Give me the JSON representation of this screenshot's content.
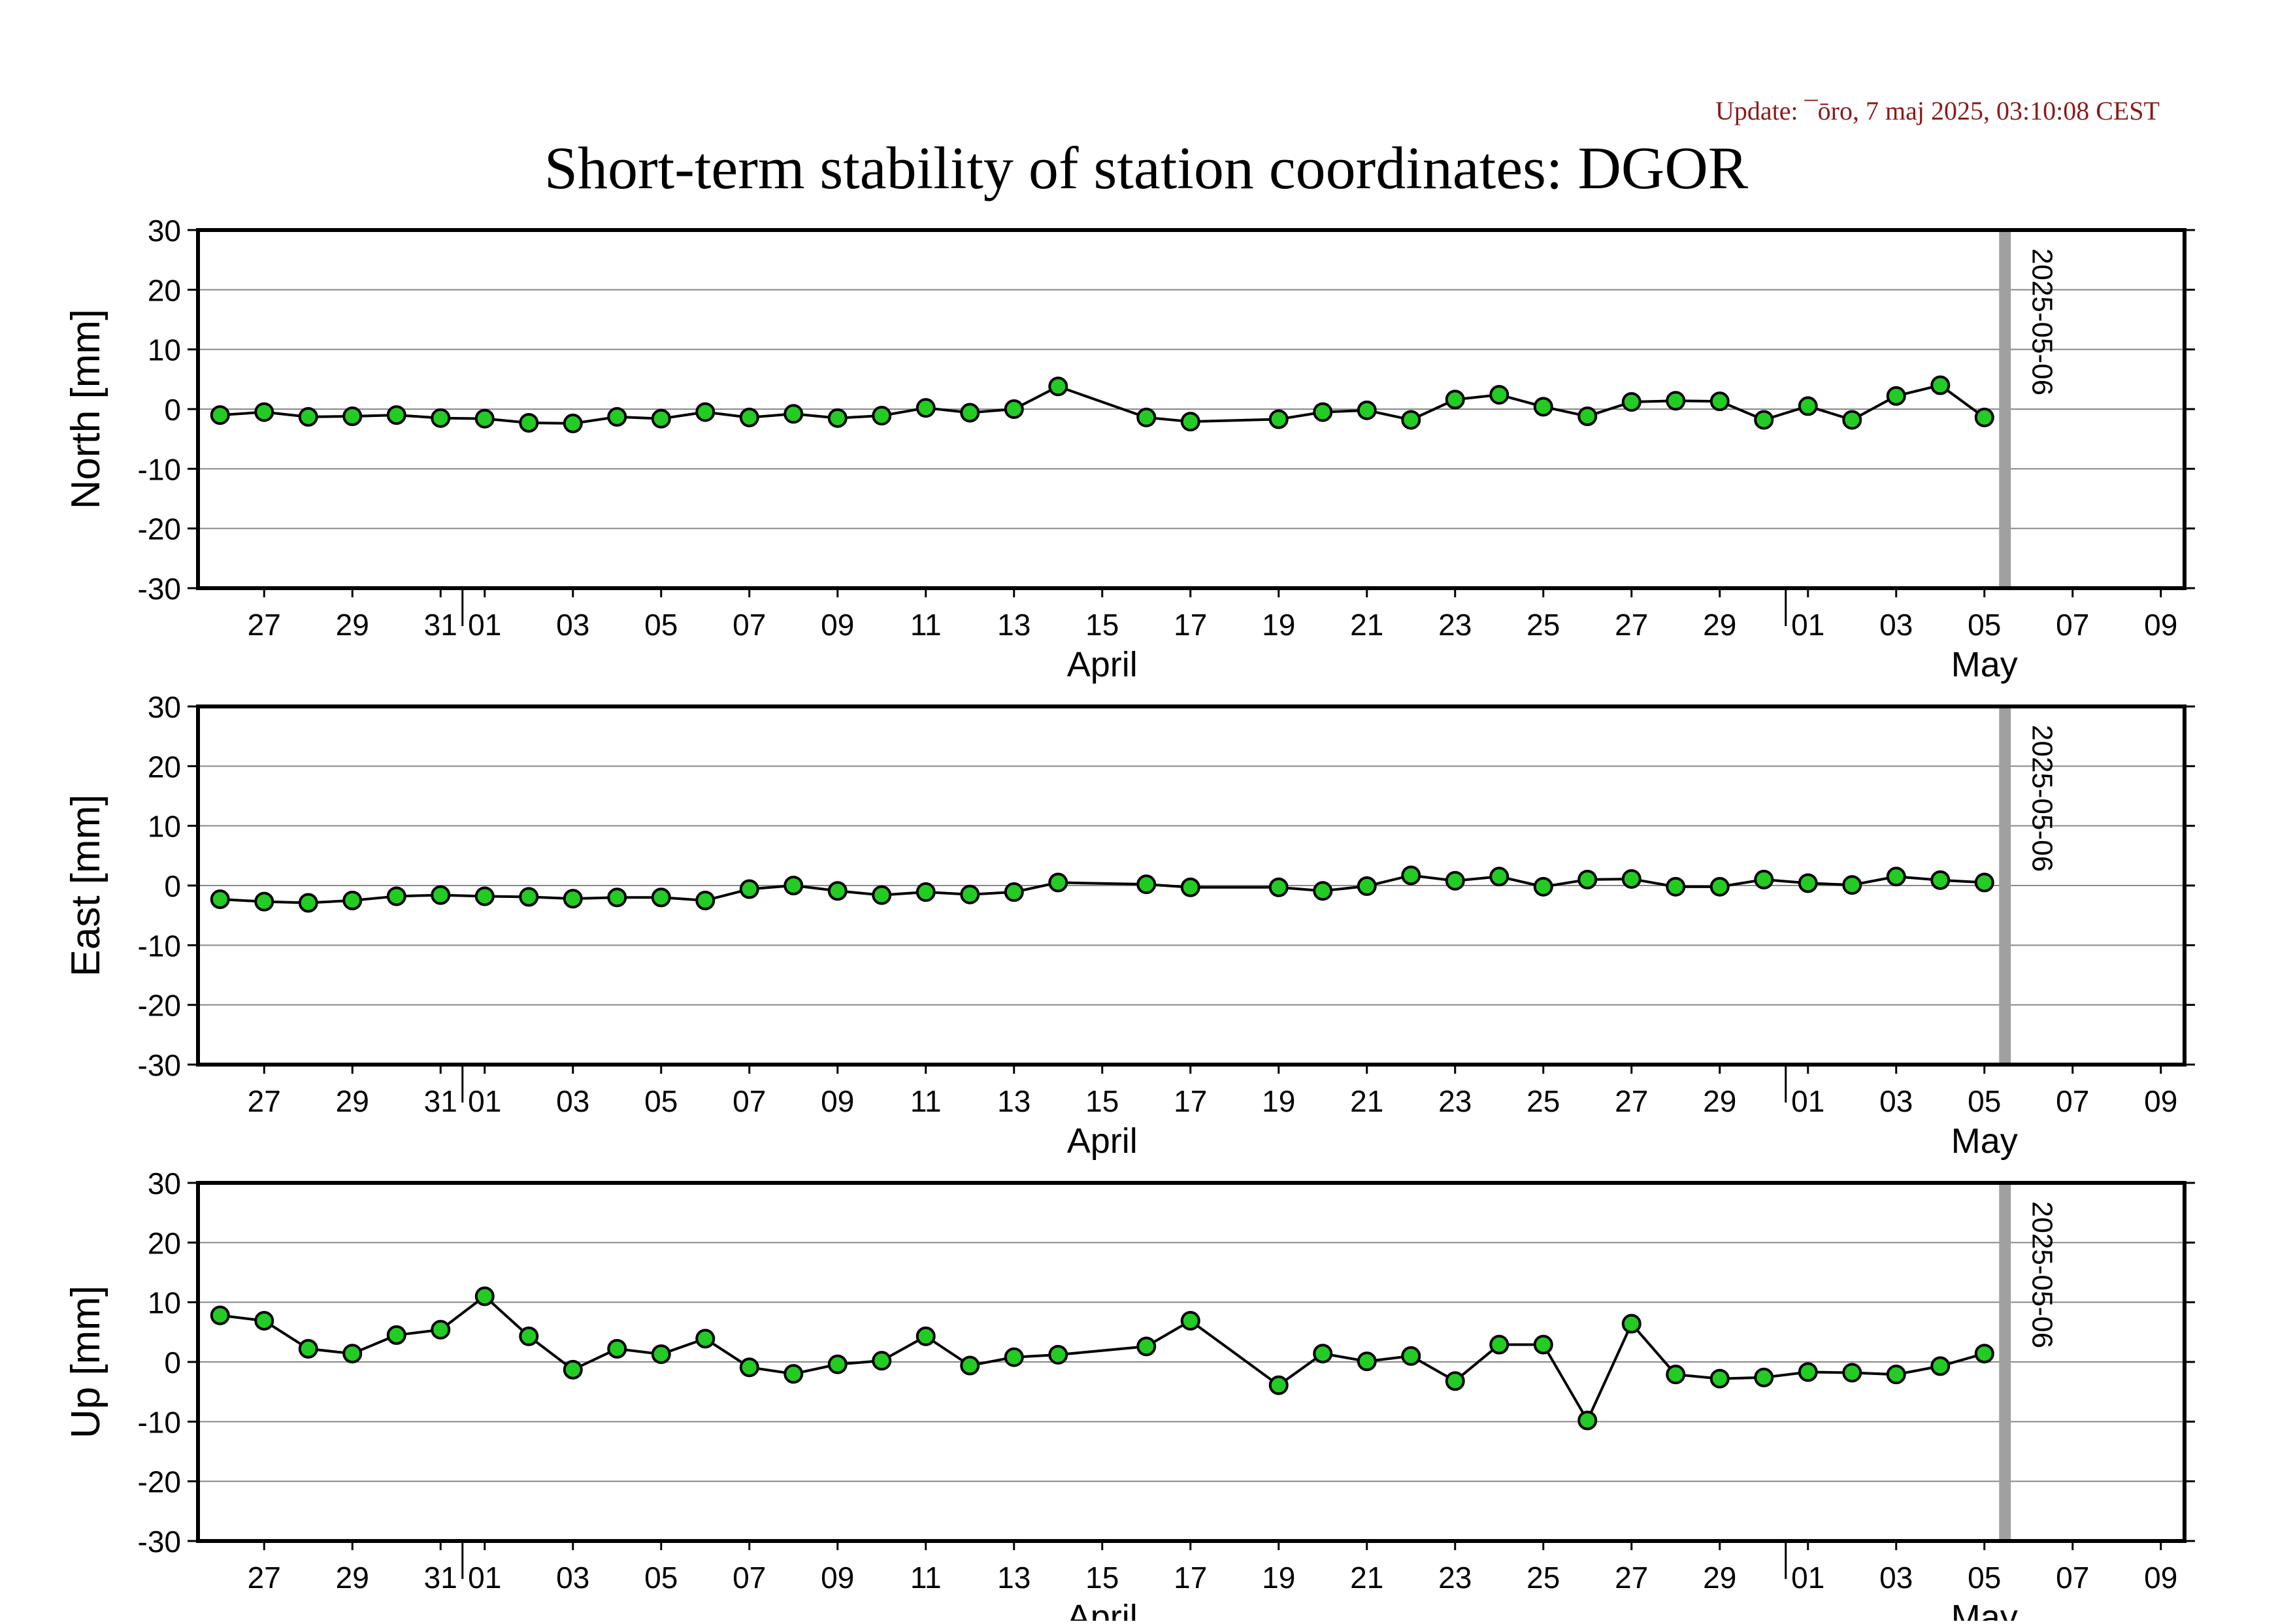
{
  "update_text": "Update: ¯ōro, 7 maj 2025, 03:10:08 CEST",
  "title": "Short-term stability of station coordinates: DGOR",
  "colors": {
    "marker_fill": "#22cc22",
    "marker_stroke": "#000000",
    "line": "#000000",
    "grid": "#888888",
    "date_marker": "#a0a0a0",
    "update_text": "#8b1a1a"
  },
  "x_axis": {
    "day_labels": [
      "27",
      "29",
      "31",
      "01",
      "03",
      "05",
      "07",
      "09",
      "11",
      "13",
      "15",
      "17",
      "19",
      "21",
      "23",
      "25",
      "27",
      "29",
      "01",
      "03",
      "05",
      "07",
      "09"
    ],
    "month_labels": [
      "April",
      "May"
    ]
  },
  "chart_data": [
    {
      "type": "line",
      "ylabel": "North [mm]",
      "ylim": [
        -30,
        30
      ],
      "yticks": [
        30,
        20,
        10,
        0,
        -10,
        -20,
        -30
      ],
      "grid": true,
      "marker_label": "2025-05-06",
      "marker_date": "2025-05-06",
      "points": [
        {
          "x": "2025-03-26",
          "y": -1.0
        },
        {
          "x": "2025-03-27",
          "y": -0.5
        },
        {
          "x": "2025-03-28",
          "y": -1.3
        },
        {
          "x": "2025-03-29",
          "y": -1.2
        },
        {
          "x": "2025-03-30",
          "y": -1.0
        },
        {
          "x": "2025-03-31",
          "y": -1.5
        },
        {
          "x": "2025-04-01",
          "y": -1.6
        },
        {
          "x": "2025-04-02",
          "y": -2.3
        },
        {
          "x": "2025-04-03",
          "y": -2.4
        },
        {
          "x": "2025-04-04",
          "y": -1.3
        },
        {
          "x": "2025-04-05",
          "y": -1.6
        },
        {
          "x": "2025-04-06",
          "y": -0.5
        },
        {
          "x": "2025-04-07",
          "y": -1.4
        },
        {
          "x": "2025-04-08",
          "y": -0.8
        },
        {
          "x": "2025-04-09",
          "y": -1.5
        },
        {
          "x": "2025-04-10",
          "y": -1.1
        },
        {
          "x": "2025-04-11",
          "y": 0.2
        },
        {
          "x": "2025-04-12",
          "y": -0.6
        },
        {
          "x": "2025-04-13",
          "y": 0.0
        },
        {
          "x": "2025-04-14",
          "y": 3.8
        },
        {
          "x": "2025-04-16",
          "y": -1.4
        },
        {
          "x": "2025-04-17",
          "y": -2.1
        },
        {
          "x": "2025-04-19",
          "y": -1.7
        },
        {
          "x": "2025-04-20",
          "y": -0.5
        },
        {
          "x": "2025-04-21",
          "y": -0.2
        },
        {
          "x": "2025-04-22",
          "y": -1.8
        },
        {
          "x": "2025-04-23",
          "y": 1.6
        },
        {
          "x": "2025-04-24",
          "y": 2.4
        },
        {
          "x": "2025-04-25",
          "y": 0.4
        },
        {
          "x": "2025-04-26",
          "y": -1.2
        },
        {
          "x": "2025-04-27",
          "y": 1.2
        },
        {
          "x": "2025-04-28",
          "y": 1.4
        },
        {
          "x": "2025-04-29",
          "y": 1.3
        },
        {
          "x": "2025-04-30",
          "y": -1.8
        },
        {
          "x": "2025-05-01",
          "y": 0.5
        },
        {
          "x": "2025-05-02",
          "y": -1.8
        },
        {
          "x": "2025-05-03",
          "y": 2.2
        },
        {
          "x": "2025-05-04",
          "y": 4.0
        },
        {
          "x": "2025-05-05",
          "y": -1.4
        }
      ]
    },
    {
      "type": "line",
      "ylabel": "East [mm]",
      "ylim": [
        -30,
        30
      ],
      "yticks": [
        30,
        20,
        10,
        0,
        -10,
        -20,
        -30
      ],
      "grid": true,
      "marker_label": "2025-05-06",
      "marker_date": "2025-05-06",
      "points": [
        {
          "x": "2025-03-26",
          "y": -2.3
        },
        {
          "x": "2025-03-27",
          "y": -2.7
        },
        {
          "x": "2025-03-28",
          "y": -2.9
        },
        {
          "x": "2025-03-29",
          "y": -2.5
        },
        {
          "x": "2025-03-30",
          "y": -1.8
        },
        {
          "x": "2025-03-31",
          "y": -1.6
        },
        {
          "x": "2025-04-01",
          "y": -1.8
        },
        {
          "x": "2025-04-02",
          "y": -1.9
        },
        {
          "x": "2025-04-03",
          "y": -2.2
        },
        {
          "x": "2025-04-04",
          "y": -2.0
        },
        {
          "x": "2025-04-05",
          "y": -2.0
        },
        {
          "x": "2025-04-06",
          "y": -2.5
        },
        {
          "x": "2025-04-07",
          "y": -0.6
        },
        {
          "x": "2025-04-08",
          "y": 0.0
        },
        {
          "x": "2025-04-09",
          "y": -0.9
        },
        {
          "x": "2025-04-10",
          "y": -1.6
        },
        {
          "x": "2025-04-11",
          "y": -1.1
        },
        {
          "x": "2025-04-12",
          "y": -1.5
        },
        {
          "x": "2025-04-13",
          "y": -1.1
        },
        {
          "x": "2025-04-14",
          "y": 0.5
        },
        {
          "x": "2025-04-16",
          "y": 0.2
        },
        {
          "x": "2025-04-17",
          "y": -0.3
        },
        {
          "x": "2025-04-19",
          "y": -0.3
        },
        {
          "x": "2025-04-20",
          "y": -0.9
        },
        {
          "x": "2025-04-21",
          "y": -0.1
        },
        {
          "x": "2025-04-22",
          "y": 1.7
        },
        {
          "x": "2025-04-23",
          "y": 0.8
        },
        {
          "x": "2025-04-24",
          "y": 1.5
        },
        {
          "x": "2025-04-25",
          "y": -0.2
        },
        {
          "x": "2025-04-26",
          "y": 1.0
        },
        {
          "x": "2025-04-27",
          "y": 1.1
        },
        {
          "x": "2025-04-28",
          "y": -0.2
        },
        {
          "x": "2025-04-29",
          "y": -0.2
        },
        {
          "x": "2025-04-30",
          "y": 1.0
        },
        {
          "x": "2025-05-01",
          "y": 0.4
        },
        {
          "x": "2025-05-02",
          "y": 0.1
        },
        {
          "x": "2025-05-03",
          "y": 1.5
        },
        {
          "x": "2025-05-04",
          "y": 0.9
        },
        {
          "x": "2025-05-05",
          "y": 0.5
        }
      ]
    },
    {
      "type": "line",
      "ylabel": "Up [mm]",
      "ylim": [
        -30,
        30
      ],
      "yticks": [
        30,
        20,
        10,
        0,
        -10,
        -20,
        -30
      ],
      "grid": true,
      "marker_label": "2025-05-06",
      "marker_date": "2025-05-06",
      "points": [
        {
          "x": "2025-03-26",
          "y": 7.8
        },
        {
          "x": "2025-03-27",
          "y": 6.9
        },
        {
          "x": "2025-03-28",
          "y": 2.2
        },
        {
          "x": "2025-03-29",
          "y": 1.4
        },
        {
          "x": "2025-03-30",
          "y": 4.5
        },
        {
          "x": "2025-03-31",
          "y": 5.4
        },
        {
          "x": "2025-04-01",
          "y": 11.0
        },
        {
          "x": "2025-04-02",
          "y": 4.3
        },
        {
          "x": "2025-04-03",
          "y": -1.3
        },
        {
          "x": "2025-04-04",
          "y": 2.2
        },
        {
          "x": "2025-04-05",
          "y": 1.3
        },
        {
          "x": "2025-04-06",
          "y": 3.9
        },
        {
          "x": "2025-04-07",
          "y": -0.9
        },
        {
          "x": "2025-04-08",
          "y": -2.0
        },
        {
          "x": "2025-04-09",
          "y": -0.4
        },
        {
          "x": "2025-04-10",
          "y": 0.2
        },
        {
          "x": "2025-04-11",
          "y": 4.3
        },
        {
          "x": "2025-04-12",
          "y": -0.6
        },
        {
          "x": "2025-04-13",
          "y": 0.8
        },
        {
          "x": "2025-04-14",
          "y": 1.2
        },
        {
          "x": "2025-04-16",
          "y": 2.6
        },
        {
          "x": "2025-04-17",
          "y": 6.9
        },
        {
          "x": "2025-04-19",
          "y": -3.9
        },
        {
          "x": "2025-04-20",
          "y": 1.4
        },
        {
          "x": "2025-04-21",
          "y": 0.1
        },
        {
          "x": "2025-04-22",
          "y": 1.0
        },
        {
          "x": "2025-04-23",
          "y": -3.2
        },
        {
          "x": "2025-04-24",
          "y": 2.9
        },
        {
          "x": "2025-04-25",
          "y": 2.9
        },
        {
          "x": "2025-04-26",
          "y": -9.8
        },
        {
          "x": "2025-04-27",
          "y": 6.4
        },
        {
          "x": "2025-04-28",
          "y": -2.1
        },
        {
          "x": "2025-04-29",
          "y": -2.8
        },
        {
          "x": "2025-04-30",
          "y": -2.6
        },
        {
          "x": "2025-05-01",
          "y": -1.7
        },
        {
          "x": "2025-05-02",
          "y": -1.8
        },
        {
          "x": "2025-05-03",
          "y": -2.1
        },
        {
          "x": "2025-05-04",
          "y": -0.7
        },
        {
          "x": "2025-05-05",
          "y": 1.4
        }
      ]
    }
  ]
}
